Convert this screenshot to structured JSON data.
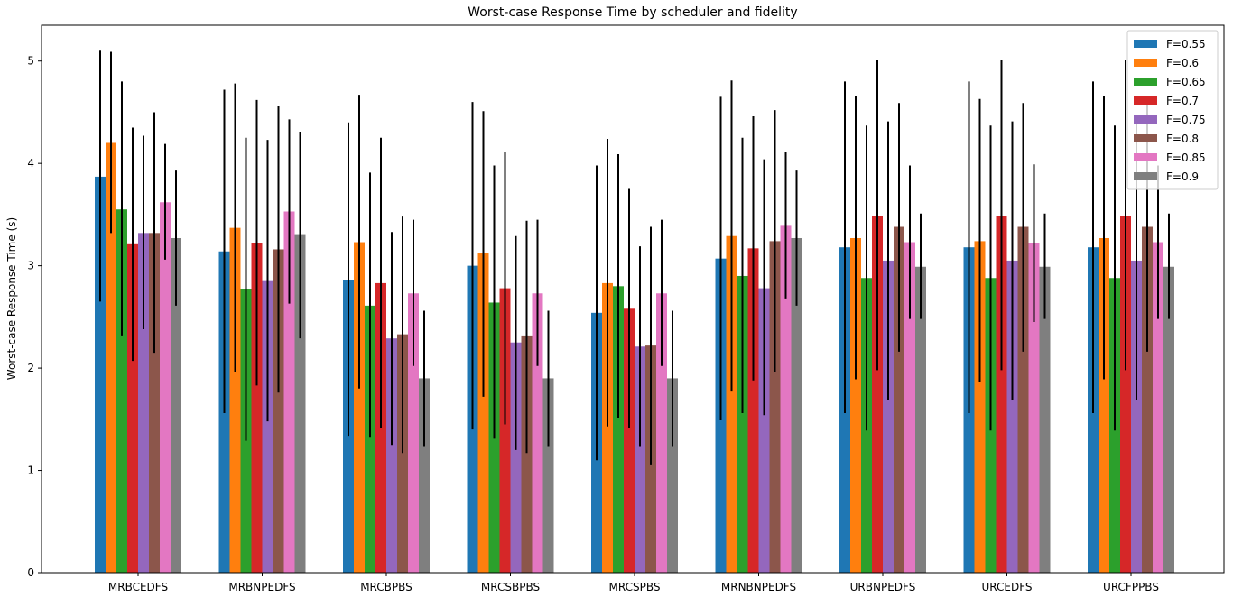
{
  "chart_data": {
    "type": "bar",
    "title": "Worst-case Response Time by scheduler and fidelity",
    "xlabel": "",
    "ylabel": "Worst-case Response Time (s)",
    "ylim": [
      0,
      5.35
    ],
    "yticks": [
      0,
      1,
      2,
      3,
      4,
      5
    ],
    "grid": false,
    "legend_position": "top-right",
    "categories": [
      "MRBCEDFS",
      "MRBNPEDFS",
      "MRCBPBS",
      "MRCSBPBS",
      "MRCSPBS",
      "MRNBNPEDFS",
      "URBNPEDFS",
      "URCEDFS",
      "URCFPPBS"
    ],
    "series": [
      {
        "name": "F=0.55",
        "color": "#1f77b4",
        "values": [
          3.87,
          3.14,
          2.86,
          3.0,
          2.54,
          3.07,
          3.18,
          3.18,
          3.18
        ],
        "err_low": [
          2.65,
          1.56,
          1.33,
          1.4,
          1.1,
          1.49,
          1.56,
          1.56,
          1.56
        ],
        "err_high": [
          5.11,
          4.72,
          4.4,
          4.6,
          3.98,
          4.65,
          4.8,
          4.8,
          4.8
        ]
      },
      {
        "name": "F=0.6",
        "color": "#ff7f0e",
        "values": [
          4.2,
          3.37,
          3.23,
          3.12,
          2.83,
          3.29,
          3.27,
          3.24,
          3.27
        ],
        "err_low": [
          3.32,
          1.96,
          1.8,
          1.72,
          1.43,
          1.77,
          1.89,
          1.86,
          1.89
        ],
        "err_high": [
          5.09,
          4.78,
          4.67,
          4.51,
          4.24,
          4.81,
          4.66,
          4.63,
          4.66
        ]
      },
      {
        "name": "F=0.65",
        "color": "#2ca02c",
        "values": [
          3.55,
          2.77,
          2.61,
          2.64,
          2.8,
          2.9,
          2.88,
          2.88,
          2.88
        ],
        "err_low": [
          2.31,
          1.29,
          1.32,
          1.31,
          1.51,
          1.56,
          1.39,
          1.39,
          1.39
        ],
        "err_high": [
          4.8,
          4.25,
          3.91,
          3.98,
          4.09,
          4.25,
          4.37,
          4.37,
          4.37
        ]
      },
      {
        "name": "F=0.7",
        "color": "#d62728",
        "values": [
          3.21,
          3.22,
          2.83,
          2.78,
          2.58,
          3.17,
          3.49,
          3.49,
          3.49
        ],
        "err_low": [
          2.07,
          1.83,
          1.41,
          1.45,
          1.41,
          1.88,
          1.98,
          1.98,
          1.98
        ],
        "err_high": [
          4.35,
          4.62,
          4.25,
          4.11,
          3.75,
          4.46,
          5.01,
          5.01,
          5.01
        ]
      },
      {
        "name": "F=0.75",
        "color": "#9467bd",
        "values": [
          3.32,
          2.85,
          2.29,
          2.25,
          2.21,
          2.78,
          3.05,
          3.05,
          3.05
        ],
        "err_low": [
          2.38,
          1.48,
          1.24,
          1.2,
          1.23,
          1.54,
          1.69,
          1.69,
          1.69
        ],
        "err_high": [
          4.27,
          4.23,
          3.33,
          3.29,
          3.19,
          4.04,
          4.41,
          4.41,
          4.41
        ]
      },
      {
        "name": "F=0.8",
        "color": "#8c564b",
        "values": [
          3.32,
          3.16,
          2.33,
          2.31,
          2.22,
          3.24,
          3.38,
          3.38,
          3.38
        ],
        "err_low": [
          2.15,
          1.76,
          1.17,
          1.17,
          1.05,
          1.96,
          2.16,
          2.16,
          2.16
        ],
        "err_high": [
          4.5,
          4.56,
          3.48,
          3.44,
          3.38,
          4.52,
          4.59,
          4.59,
          4.59
        ]
      },
      {
        "name": "F=0.85",
        "color": "#e377c2",
        "values": [
          3.62,
          3.53,
          2.73,
          2.73,
          2.73,
          3.39,
          3.23,
          3.22,
          3.23
        ],
        "err_low": [
          3.06,
          2.63,
          2.02,
          2.02,
          2.02,
          2.68,
          2.48,
          2.45,
          2.48
        ],
        "err_high": [
          4.19,
          4.43,
          3.45,
          3.45,
          3.45,
          4.11,
          3.98,
          3.99,
          3.98
        ]
      },
      {
        "name": "F=0.9",
        "color": "#7f7f7f",
        "values": [
          3.27,
          3.3,
          1.9,
          1.9,
          1.9,
          3.27,
          2.99,
          2.99,
          2.99
        ],
        "err_low": [
          2.61,
          2.29,
          1.23,
          1.23,
          1.23,
          2.61,
          2.48,
          2.48,
          2.48
        ],
        "err_high": [
          3.93,
          4.31,
          2.56,
          2.56,
          2.56,
          3.93,
          3.51,
          3.51,
          3.51
        ]
      }
    ]
  }
}
